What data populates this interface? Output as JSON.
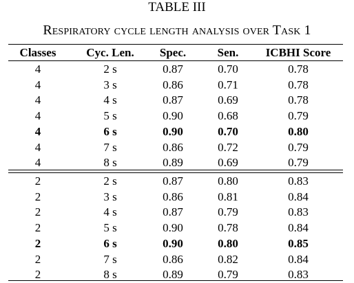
{
  "table": {
    "number": "TABLE III",
    "caption": "Respiratory cycle length analysis over Task 1",
    "headers": [
      "Classes",
      "Cyc. Len.",
      "Spec.",
      "Sen.",
      "ICBHI Score"
    ],
    "groups": [
      {
        "rows": [
          [
            "4",
            "2 s",
            "0.87",
            "0.70",
            "0.78"
          ],
          [
            "4",
            "3 s",
            "0.86",
            "0.71",
            "0.78"
          ],
          [
            "4",
            "4 s",
            "0.87",
            "0.69",
            "0.78"
          ],
          [
            "4",
            "5 s",
            "0.90",
            "0.68",
            "0.79"
          ],
          [
            "4",
            "6 s",
            "0.90",
            "0.70",
            "0.80"
          ],
          [
            "4",
            "7 s",
            "0.86",
            "0.72",
            "0.79"
          ],
          [
            "4",
            "8 s",
            "0.89",
            "0.69",
            "0.79"
          ]
        ],
        "bold_row": 4
      },
      {
        "rows": [
          [
            "2",
            "2 s",
            "0.87",
            "0.80",
            "0.83"
          ],
          [
            "2",
            "3 s",
            "0.86",
            "0.81",
            "0.84"
          ],
          [
            "2",
            "4 s",
            "0.87",
            "0.79",
            "0.83"
          ],
          [
            "2",
            "5 s",
            "0.90",
            "0.78",
            "0.84"
          ],
          [
            "2",
            "6 s",
            "0.90",
            "0.80",
            "0.85"
          ],
          [
            "2",
            "7 s",
            "0.86",
            "0.82",
            "0.84"
          ],
          [
            "2",
            "8 s",
            "0.89",
            "0.79",
            "0.83"
          ]
        ],
        "bold_row": 4
      }
    ]
  }
}
